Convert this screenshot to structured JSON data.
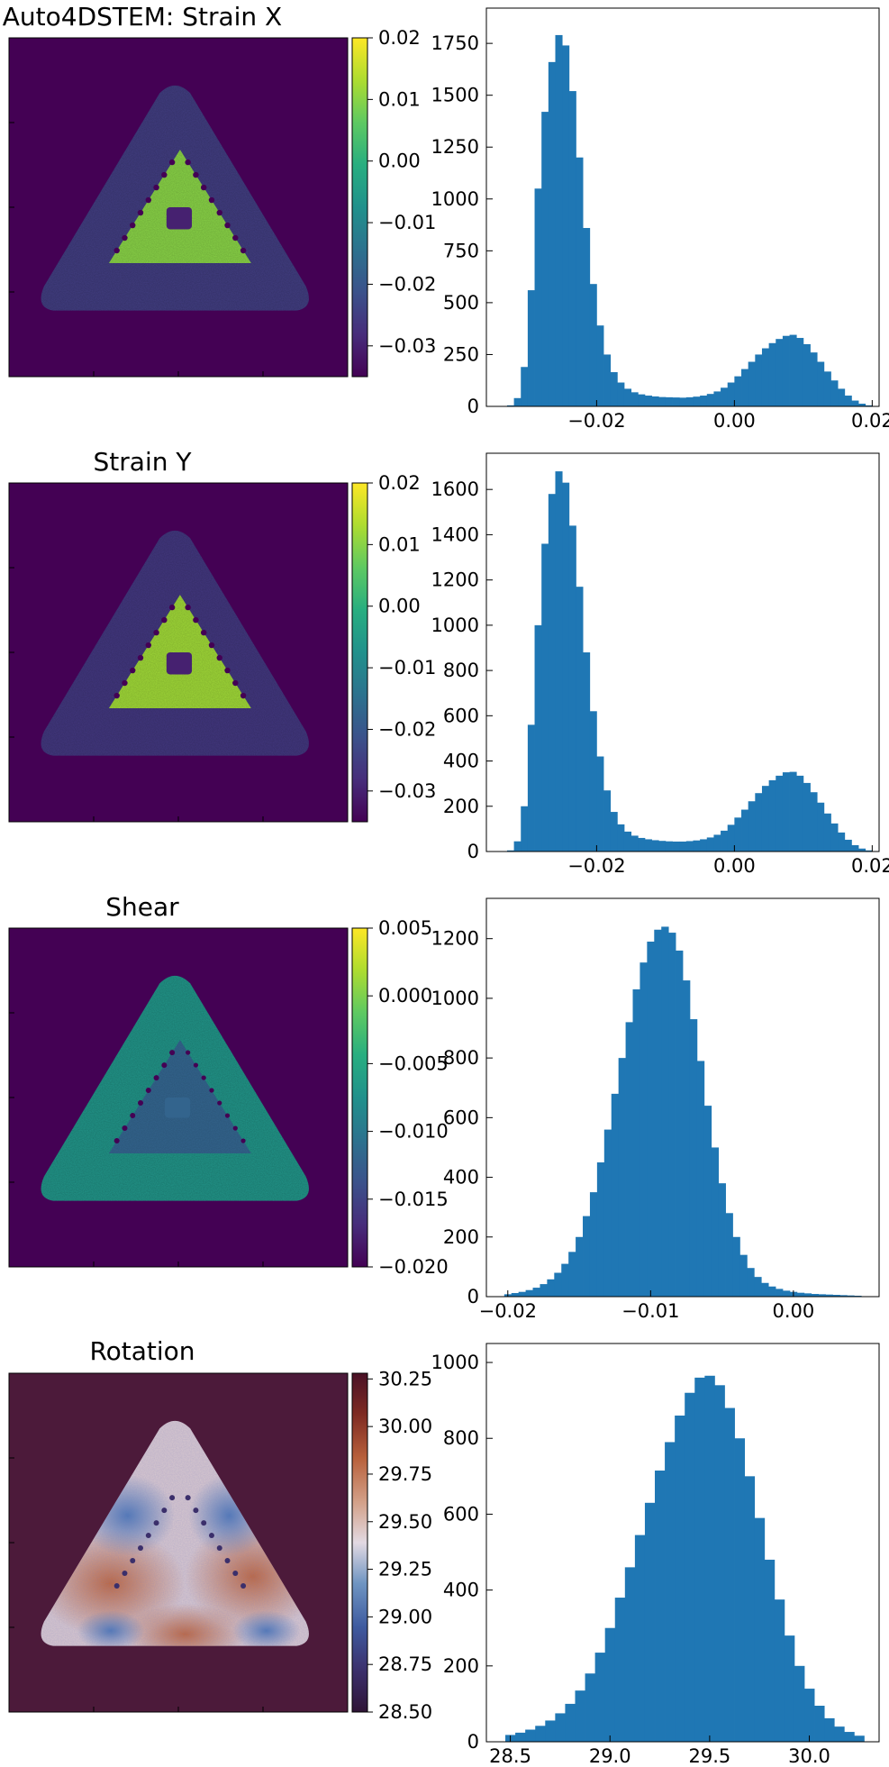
{
  "chart_data": [
    {
      "type": "heatmap",
      "title": "Auto4DSTEM: Strain X",
      "colormap": "viridis",
      "colorbar": {
        "vmin": -0.035,
        "vmax": 0.02,
        "ticks": [
          "0.02",
          "0.01",
          "0.00",
          "−0.01",
          "−0.02",
          "−0.03"
        ],
        "tick_values": [
          0.02,
          0.01,
          0.0,
          -0.01,
          -0.02,
          -0.03
        ]
      },
      "regions": {
        "background": -0.035,
        "outer_band": -0.025,
        "inner_triangle": 0.01,
        "inner_hole": -0.03,
        "defect_spots": -0.035
      }
    },
    {
      "type": "bar",
      "title": "",
      "xlim": [
        -0.036,
        0.021
      ],
      "ylim": [
        0,
        1920
      ],
      "xticks": [
        -0.02,
        0.0,
        0.02
      ],
      "xtick_labels": [
        "−0.02",
        "0.00",
        "0.02"
      ],
      "yticks": [
        0,
        250,
        500,
        750,
        1000,
        1250,
        1500,
        1750
      ],
      "yticklabels": [
        "0",
        "250",
        "500",
        "750",
        "1000",
        "1250",
        "1500",
        "1750"
      ],
      "bars": [
        {
          "x": -0.0325,
          "y": 5
        },
        {
          "x": -0.0315,
          "y": 40
        },
        {
          "x": -0.0305,
          "y": 190
        },
        {
          "x": -0.0295,
          "y": 560
        },
        {
          "x": -0.0285,
          "y": 1050
        },
        {
          "x": -0.0275,
          "y": 1420
        },
        {
          "x": -0.0265,
          "y": 1660
        },
        {
          "x": -0.0255,
          "y": 1790
        },
        {
          "x": -0.0245,
          "y": 1740
        },
        {
          "x": -0.0235,
          "y": 1520
        },
        {
          "x": -0.0225,
          "y": 1200
        },
        {
          "x": -0.0215,
          "y": 860
        },
        {
          "x": -0.0205,
          "y": 590
        },
        {
          "x": -0.0195,
          "y": 390
        },
        {
          "x": -0.0185,
          "y": 250
        },
        {
          "x": -0.0175,
          "y": 165
        },
        {
          "x": -0.0165,
          "y": 115
        },
        {
          "x": -0.0155,
          "y": 85
        },
        {
          "x": -0.0145,
          "y": 68
        },
        {
          "x": -0.0135,
          "y": 58
        },
        {
          "x": -0.0125,
          "y": 52
        },
        {
          "x": -0.0115,
          "y": 48
        },
        {
          "x": -0.0105,
          "y": 45
        },
        {
          "x": -0.0095,
          "y": 44
        },
        {
          "x": -0.0085,
          "y": 43
        },
        {
          "x": -0.0075,
          "y": 42
        },
        {
          "x": -0.0065,
          "y": 44
        },
        {
          "x": -0.0055,
          "y": 47
        },
        {
          "x": -0.0045,
          "y": 52
        },
        {
          "x": -0.0035,
          "y": 60
        },
        {
          "x": -0.0025,
          "y": 72
        },
        {
          "x": -0.0015,
          "y": 90
        },
        {
          "x": -0.0005,
          "y": 115
        },
        {
          "x": 0.0005,
          "y": 145
        },
        {
          "x": 0.0015,
          "y": 180
        },
        {
          "x": 0.0025,
          "y": 215
        },
        {
          "x": 0.0035,
          "y": 250
        },
        {
          "x": 0.0045,
          "y": 280
        },
        {
          "x": 0.0055,
          "y": 305
        },
        {
          "x": 0.0065,
          "y": 325
        },
        {
          "x": 0.0075,
          "y": 340
        },
        {
          "x": 0.0085,
          "y": 345
        },
        {
          "x": 0.0095,
          "y": 330
        },
        {
          "x": 0.0105,
          "y": 300
        },
        {
          "x": 0.0115,
          "y": 260
        },
        {
          "x": 0.0125,
          "y": 215
        },
        {
          "x": 0.0135,
          "y": 168
        },
        {
          "x": 0.0145,
          "y": 125
        },
        {
          "x": 0.0155,
          "y": 85
        },
        {
          "x": 0.0165,
          "y": 52
        },
        {
          "x": 0.0175,
          "y": 28
        },
        {
          "x": 0.0185,
          "y": 13
        },
        {
          "x": 0.0195,
          "y": 5
        }
      ],
      "bar_width": 0.001
    },
    {
      "type": "heatmap",
      "title": "Strain Y",
      "colormap": "viridis",
      "colorbar": {
        "vmin": -0.035,
        "vmax": 0.02,
        "ticks": [
          "0.02",
          "0.01",
          "0.00",
          "−0.01",
          "−0.02",
          "−0.03"
        ],
        "tick_values": [
          0.02,
          0.01,
          0.0,
          -0.01,
          -0.02,
          -0.03
        ]
      },
      "regions": {
        "background": -0.035,
        "outer_band": -0.026,
        "inner_triangle": 0.012,
        "inner_hole": -0.03,
        "defect_spots": -0.035
      }
    },
    {
      "type": "bar",
      "title": "",
      "xlim": [
        -0.036,
        0.021
      ],
      "ylim": [
        0,
        1760
      ],
      "xticks": [
        -0.02,
        0.0,
        0.02
      ],
      "xtick_labels": [
        "−0.02",
        "0.00",
        "0.02"
      ],
      "yticks": [
        0,
        200,
        400,
        600,
        800,
        1000,
        1200,
        1400,
        1600
      ],
      "yticklabels": [
        "0",
        "200",
        "400",
        "600",
        "800",
        "1000",
        "1200",
        "1400",
        "1600"
      ],
      "bars": [
        {
          "x": -0.0325,
          "y": 5
        },
        {
          "x": -0.0315,
          "y": 45
        },
        {
          "x": -0.0305,
          "y": 200
        },
        {
          "x": -0.0295,
          "y": 560
        },
        {
          "x": -0.0285,
          "y": 1000
        },
        {
          "x": -0.0275,
          "y": 1360
        },
        {
          "x": -0.0265,
          "y": 1580
        },
        {
          "x": -0.0255,
          "y": 1680
        },
        {
          "x": -0.0245,
          "y": 1630
        },
        {
          "x": -0.0235,
          "y": 1440
        },
        {
          "x": -0.0225,
          "y": 1170
        },
        {
          "x": -0.0215,
          "y": 880
        },
        {
          "x": -0.0205,
          "y": 620
        },
        {
          "x": -0.0195,
          "y": 420
        },
        {
          "x": -0.0185,
          "y": 270
        },
        {
          "x": -0.0175,
          "y": 175
        },
        {
          "x": -0.0165,
          "y": 120
        },
        {
          "x": -0.0155,
          "y": 88
        },
        {
          "x": -0.0145,
          "y": 70
        },
        {
          "x": -0.0135,
          "y": 60
        },
        {
          "x": -0.0125,
          "y": 54
        },
        {
          "x": -0.0115,
          "y": 50
        },
        {
          "x": -0.0105,
          "y": 47
        },
        {
          "x": -0.0095,
          "y": 45
        },
        {
          "x": -0.0085,
          "y": 44
        },
        {
          "x": -0.0075,
          "y": 44
        },
        {
          "x": -0.0065,
          "y": 46
        },
        {
          "x": -0.0055,
          "y": 49
        },
        {
          "x": -0.0045,
          "y": 54
        },
        {
          "x": -0.0035,
          "y": 62
        },
        {
          "x": -0.0025,
          "y": 74
        },
        {
          "x": -0.0015,
          "y": 92
        },
        {
          "x": -0.0005,
          "y": 118
        },
        {
          "x": 0.0005,
          "y": 150
        },
        {
          "x": 0.0015,
          "y": 185
        },
        {
          "x": 0.0025,
          "y": 222
        },
        {
          "x": 0.0035,
          "y": 258
        },
        {
          "x": 0.0045,
          "y": 290
        },
        {
          "x": 0.0055,
          "y": 315
        },
        {
          "x": 0.0065,
          "y": 335
        },
        {
          "x": 0.0075,
          "y": 350
        },
        {
          "x": 0.0085,
          "y": 352
        },
        {
          "x": 0.0095,
          "y": 335
        },
        {
          "x": 0.0105,
          "y": 303
        },
        {
          "x": 0.0115,
          "y": 262
        },
        {
          "x": 0.0125,
          "y": 216
        },
        {
          "x": 0.0135,
          "y": 168
        },
        {
          "x": 0.0145,
          "y": 124
        },
        {
          "x": 0.0155,
          "y": 84
        },
        {
          "x": 0.0165,
          "y": 52
        },
        {
          "x": 0.0175,
          "y": 28
        },
        {
          "x": 0.0185,
          "y": 13
        },
        {
          "x": 0.0195,
          "y": 5
        }
      ],
      "bar_width": 0.001
    },
    {
      "type": "heatmap",
      "title": "Shear",
      "colormap": "viridis",
      "colorbar": {
        "vmin": -0.02,
        "vmax": 0.005,
        "ticks": [
          "0.005",
          "0.000",
          "−0.005",
          "−0.010",
          "−0.015",
          "−0.020"
        ],
        "tick_values": [
          0.005,
          0.0,
          -0.005,
          -0.01,
          -0.015,
          -0.02
        ]
      },
      "regions": {
        "background": -0.02,
        "outer_band": -0.007,
        "inner_triangle": -0.012,
        "inner_hole": -0.012,
        "defect_spots": -0.02
      }
    },
    {
      "type": "bar",
      "title": "",
      "xlim": [
        -0.0215,
        0.006
      ],
      "ylim": [
        0,
        1335
      ],
      "xticks": [
        -0.02,
        -0.01,
        0.0
      ],
      "xtick_labels": [
        "−0.02",
        "−0.01",
        "0.00"
      ],
      "yticks": [
        0,
        200,
        400,
        600,
        800,
        1000,
        1200
      ],
      "yticklabels": [
        "0",
        "200",
        "400",
        "600",
        "800",
        "1000",
        "1200"
      ],
      "bars": [
        {
          "x": -0.02,
          "y": 8
        },
        {
          "x": -0.0195,
          "y": 12
        },
        {
          "x": -0.019,
          "y": 16
        },
        {
          "x": -0.0185,
          "y": 22
        },
        {
          "x": -0.018,
          "y": 30
        },
        {
          "x": -0.0175,
          "y": 42
        },
        {
          "x": -0.017,
          "y": 58
        },
        {
          "x": -0.0165,
          "y": 80
        },
        {
          "x": -0.016,
          "y": 110
        },
        {
          "x": -0.0155,
          "y": 150
        },
        {
          "x": -0.015,
          "y": 200
        },
        {
          "x": -0.0145,
          "y": 270
        },
        {
          "x": -0.014,
          "y": 350
        },
        {
          "x": -0.0135,
          "y": 450
        },
        {
          "x": -0.013,
          "y": 560
        },
        {
          "x": -0.0125,
          "y": 680
        },
        {
          "x": -0.012,
          "y": 800
        },
        {
          "x": -0.0115,
          "y": 920
        },
        {
          "x": -0.011,
          "y": 1030
        },
        {
          "x": -0.0105,
          "y": 1120
        },
        {
          "x": -0.01,
          "y": 1190
        },
        {
          "x": -0.0095,
          "y": 1230
        },
        {
          "x": -0.009,
          "y": 1240
        },
        {
          "x": -0.0085,
          "y": 1220
        },
        {
          "x": -0.008,
          "y": 1160
        },
        {
          "x": -0.0075,
          "y": 1060
        },
        {
          "x": -0.007,
          "y": 930
        },
        {
          "x": -0.0065,
          "y": 790
        },
        {
          "x": -0.006,
          "y": 640
        },
        {
          "x": -0.0055,
          "y": 500
        },
        {
          "x": -0.005,
          "y": 380
        },
        {
          "x": -0.0045,
          "y": 280
        },
        {
          "x": -0.004,
          "y": 200
        },
        {
          "x": -0.0035,
          "y": 140
        },
        {
          "x": -0.003,
          "y": 96
        },
        {
          "x": -0.0025,
          "y": 66
        },
        {
          "x": -0.002,
          "y": 46
        },
        {
          "x": -0.0015,
          "y": 34
        },
        {
          "x": -0.001,
          "y": 26
        },
        {
          "x": -0.0005,
          "y": 20
        },
        {
          "x": 0.0,
          "y": 16
        },
        {
          "x": 0.0005,
          "y": 13
        },
        {
          "x": 0.001,
          "y": 11
        },
        {
          "x": 0.0015,
          "y": 9
        },
        {
          "x": 0.002,
          "y": 8
        },
        {
          "x": 0.0025,
          "y": 7
        },
        {
          "x": 0.003,
          "y": 6
        },
        {
          "x": 0.0035,
          "y": 5
        },
        {
          "x": 0.004,
          "y": 4
        },
        {
          "x": 0.0045,
          "y": 3
        }
      ],
      "bar_width": 0.0005
    },
    {
      "type": "heatmap",
      "title": "Rotation",
      "colormap": "twilight_shifted",
      "colorbar": {
        "vmin": 28.5,
        "vmax": 30.28,
        "ticks": [
          "30.25",
          "30.00",
          "29.75",
          "29.50",
          "29.25",
          "29.00",
          "28.75",
          "28.50"
        ],
        "tick_values": [
          30.25,
          30.0,
          29.75,
          29.5,
          29.25,
          29.0,
          28.75,
          28.5
        ]
      },
      "regions": {
        "background": 30.2,
        "warm_lobes": 29.7,
        "cool_lobes": 29.0,
        "inner_triangle": 29.35
      }
    },
    {
      "type": "bar",
      "title": "",
      "xlim": [
        28.38,
        30.35
      ],
      "ylim": [
        0,
        1050
      ],
      "xticks": [
        28.5,
        29.0,
        29.5,
        30.0
      ],
      "xtick_labels": [
        "28.5",
        "29.0",
        "29.5",
        "30.0"
      ],
      "yticks": [
        0,
        200,
        400,
        600,
        800,
        1000
      ],
      "yticklabels": [
        "0",
        "200",
        "400",
        "600",
        "800",
        "1000"
      ],
      "bars": [
        {
          "x": 28.5,
          "y": 18
        },
        {
          "x": 28.55,
          "y": 24
        },
        {
          "x": 28.6,
          "y": 32
        },
        {
          "x": 28.65,
          "y": 42
        },
        {
          "x": 28.7,
          "y": 56
        },
        {
          "x": 28.75,
          "y": 75
        },
        {
          "x": 28.8,
          "y": 100
        },
        {
          "x": 28.85,
          "y": 135
        },
        {
          "x": 28.9,
          "y": 180
        },
        {
          "x": 28.95,
          "y": 235
        },
        {
          "x": 29.0,
          "y": 300
        },
        {
          "x": 29.05,
          "y": 380
        },
        {
          "x": 29.1,
          "y": 460
        },
        {
          "x": 29.15,
          "y": 545
        },
        {
          "x": 29.2,
          "y": 630
        },
        {
          "x": 29.25,
          "y": 715
        },
        {
          "x": 29.3,
          "y": 790
        },
        {
          "x": 29.35,
          "y": 860
        },
        {
          "x": 29.4,
          "y": 920
        },
        {
          "x": 29.45,
          "y": 960
        },
        {
          "x": 29.5,
          "y": 965
        },
        {
          "x": 29.55,
          "y": 940
        },
        {
          "x": 29.6,
          "y": 880
        },
        {
          "x": 29.65,
          "y": 800
        },
        {
          "x": 29.7,
          "y": 700
        },
        {
          "x": 29.75,
          "y": 590
        },
        {
          "x": 29.8,
          "y": 480
        },
        {
          "x": 29.85,
          "y": 375
        },
        {
          "x": 29.9,
          "y": 280
        },
        {
          "x": 29.95,
          "y": 200
        },
        {
          "x": 30.0,
          "y": 140
        },
        {
          "x": 30.05,
          "y": 95
        },
        {
          "x": 30.1,
          "y": 62
        },
        {
          "x": 30.15,
          "y": 40
        },
        {
          "x": 30.2,
          "y": 26
        },
        {
          "x": 30.25,
          "y": 16
        }
      ],
      "bar_width": 0.05
    }
  ]
}
